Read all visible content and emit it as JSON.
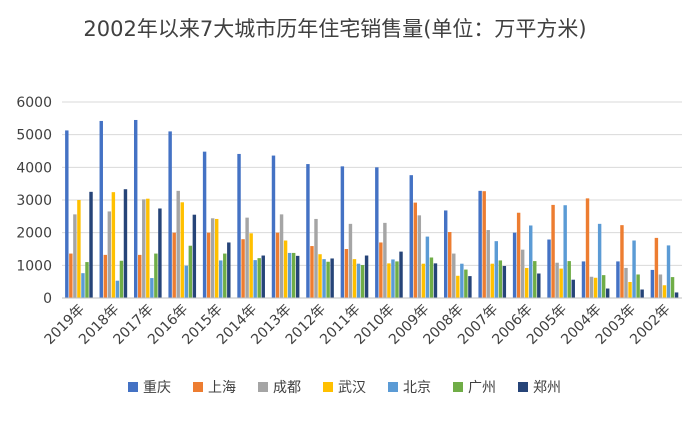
{
  "chart_data": {
    "type": "bar",
    "title": "2002年以来7大城市历年住宅销售量(单位：万平方米)",
    "xlabel": "",
    "ylabel": "",
    "ylim": [
      0,
      6000
    ],
    "yticks": [
      0,
      1000,
      2000,
      3000,
      4000,
      5000,
      6000
    ],
    "grid": true,
    "legend": "bottom",
    "categories": [
      "2019年",
      "2018年",
      "2017年",
      "2016年",
      "2015年",
      "2014年",
      "2013年",
      "2012年",
      "2011年",
      "2010年",
      "2009年",
      "2008年",
      "2007年",
      "2006年",
      "2005年",
      "2004年",
      "2003年",
      "2002年"
    ],
    "series": [
      {
        "name": "重庆",
        "color": "#4472C4",
        "values": [
          5130,
          5420,
          5450,
          5100,
          4480,
          4410,
          4360,
          4100,
          4030,
          4000,
          3760,
          2680,
          3280,
          2000,
          1790,
          1120,
          1120,
          860
        ]
      },
      {
        "name": "上海",
        "color": "#ED7D31",
        "values": [
          1360,
          1320,
          1320,
          2000,
          2000,
          1800,
          2000,
          1590,
          1500,
          1700,
          2920,
          2020,
          3270,
          2610,
          2850,
          3050,
          2230,
          1840
        ]
      },
      {
        "name": "成都",
        "color": "#A5A5A5",
        "values": [
          2560,
          2650,
          3020,
          3280,
          2440,
          2460,
          2560,
          2420,
          2270,
          2300,
          2530,
          1360,
          2080,
          1480,
          1080,
          650,
          920,
          720
        ]
      },
      {
        "name": "武汉",
        "color": "#FFC000",
        "values": [
          3000,
          3240,
          3040,
          2930,
          2420,
          1980,
          1760,
          1340,
          1190,
          1060,
          1050,
          680,
          1050,
          920,
          900,
          620,
          490,
          390
        ]
      },
      {
        "name": "北京",
        "color": "#5B9BD5",
        "values": [
          760,
          530,
          610,
          990,
          1150,
          1160,
          1380,
          1190,
          1050,
          1180,
          1880,
          1050,
          1740,
          2220,
          2840,
          2270,
          1760,
          1610
        ]
      },
      {
        "name": "广州",
        "color": "#70AD47",
        "values": [
          1100,
          1140,
          1360,
          1600,
          1360,
          1220,
          1380,
          1110,
          1010,
          1120,
          1240,
          870,
          1150,
          1130,
          1130,
          700,
          720,
          640
        ]
      },
      {
        "name": "郑州",
        "color": "#264478",
        "values": [
          3250,
          3330,
          2740,
          2550,
          1700,
          1300,
          1290,
          1210,
          1300,
          1420,
          1060,
          670,
          980,
          750,
          560,
          290,
          260,
          170
        ]
      }
    ]
  }
}
